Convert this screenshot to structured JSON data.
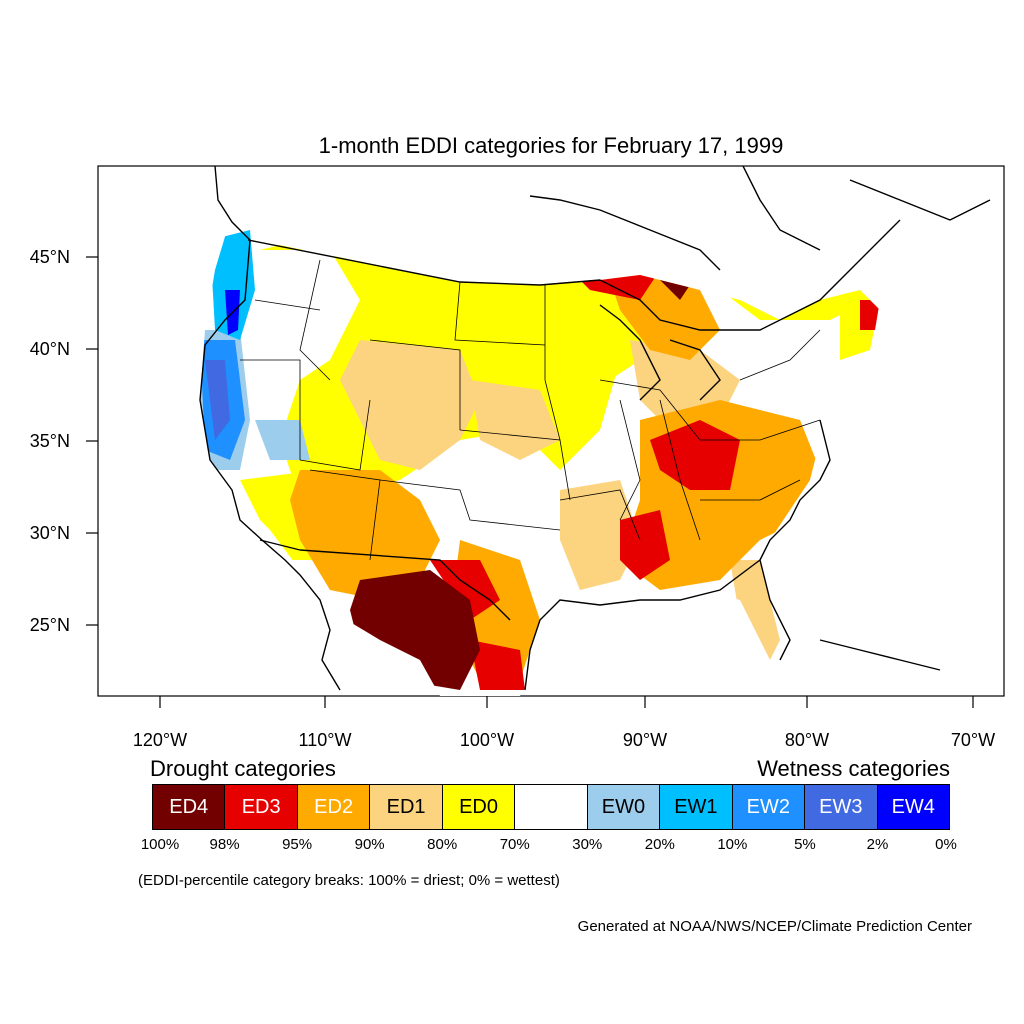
{
  "title": "1-month EDDI categories for February 17, 1999",
  "lat_labels": [
    "45°N",
    "40°N",
    "35°N",
    "30°N",
    "25°N"
  ],
  "lon_labels": [
    "120°W",
    "110°W",
    "100°W",
    "90°W",
    "80°W",
    "70°W"
  ],
  "legend": {
    "drought_heading": "Drought categories",
    "wetness_heading": "Wetness categories",
    "categories": [
      {
        "label": "ED4",
        "color": "#730000",
        "text_color": "#ffffff"
      },
      {
        "label": "ED3",
        "color": "#e60000",
        "text_color": "#ffffff"
      },
      {
        "label": "ED2",
        "color": "#ffaa00",
        "text_color": "#ffffff"
      },
      {
        "label": "ED1",
        "color": "#fcd37f",
        "text_color": "#000000"
      },
      {
        "label": "ED0",
        "color": "#ffff00",
        "text_color": "#000000"
      },
      {
        "label": "",
        "color": "#ffffff",
        "text_color": "#000000"
      },
      {
        "label": "EW0",
        "color": "#9ccdec",
        "text_color": "#000000"
      },
      {
        "label": "EW1",
        "color": "#00bfff",
        "text_color": "#000000"
      },
      {
        "label": "EW2",
        "color": "#1e90ff",
        "text_color": "#ffffff"
      },
      {
        "label": "EW3",
        "color": "#4169e1",
        "text_color": "#ffffff"
      },
      {
        "label": "EW4",
        "color": "#0000ff",
        "text_color": "#ffffff"
      }
    ],
    "percentiles": [
      "100%",
      "98%",
      "95%",
      "90%",
      "80%",
      "70%",
      "30%",
      "20%",
      "10%",
      "5%",
      "2%",
      "0%"
    ]
  },
  "note": "(EDDI-percentile category breaks: 100% = driest; 0% = wettest)",
  "credit": "Generated at NOAA/NWS/NCEP/Climate Prediction Center"
}
